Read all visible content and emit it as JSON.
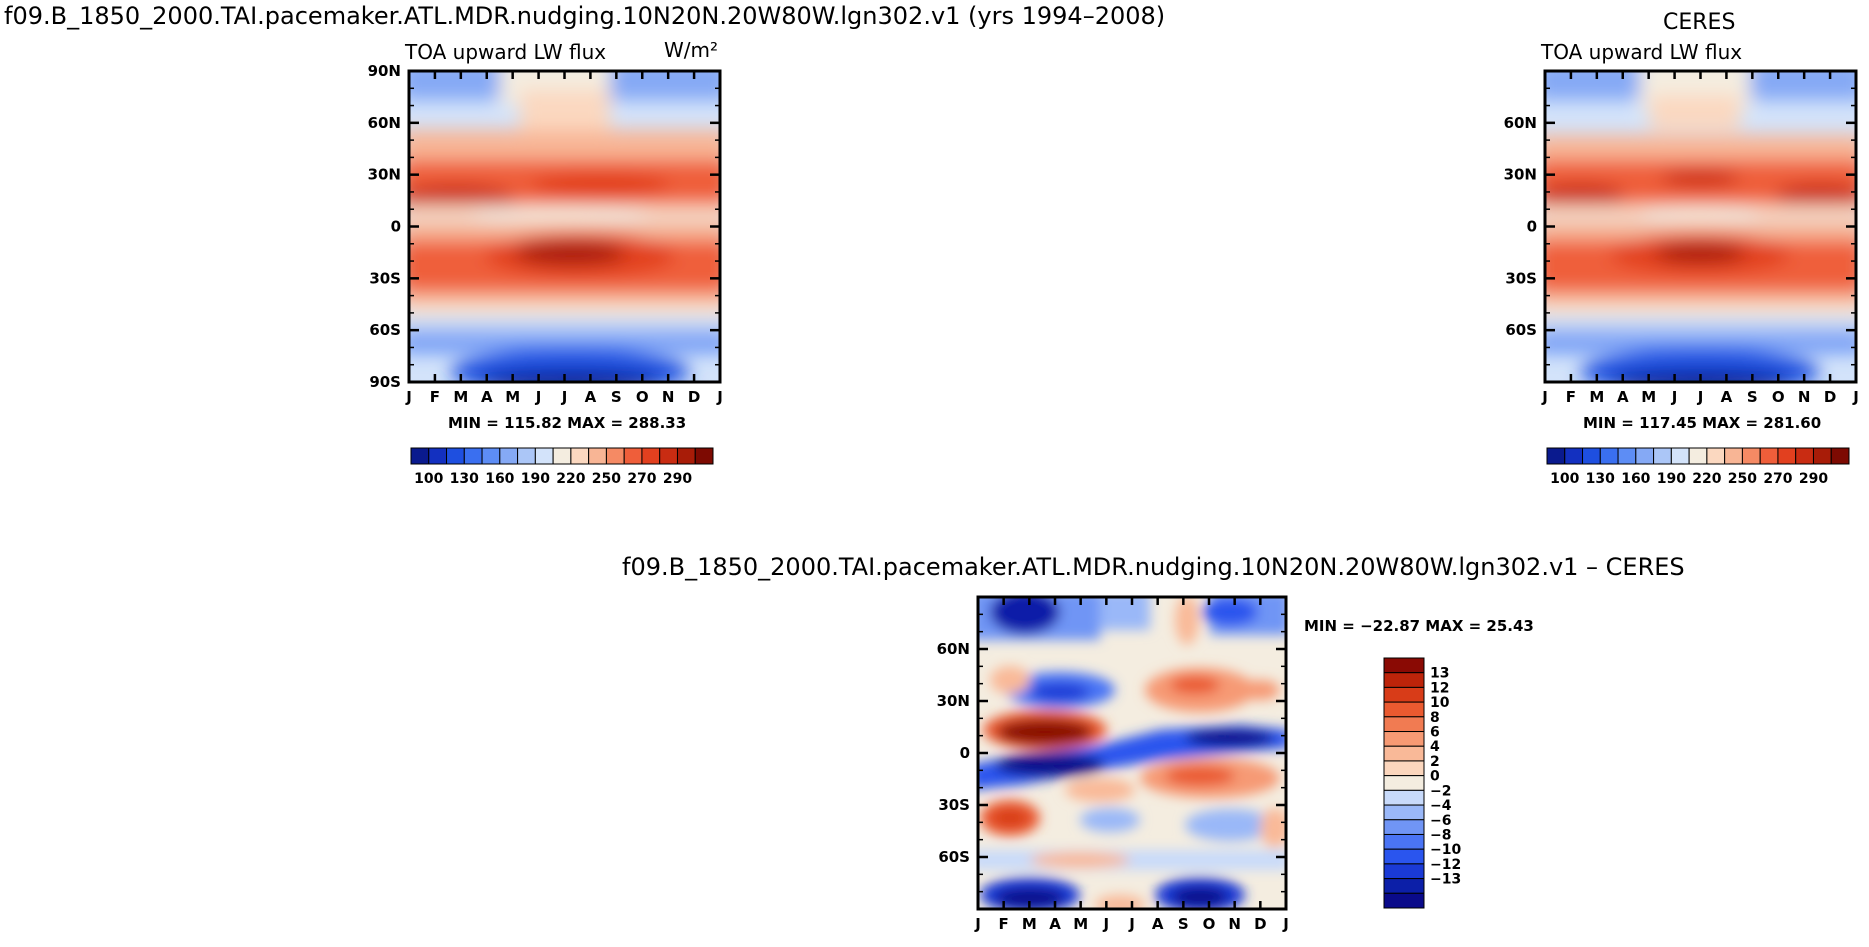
{
  "colors": {
    "model_scale": [
      "#0a1a8e",
      "#1330c0",
      "#1e4fe0",
      "#3a6ff0",
      "#5d8df5",
      "#85a9f5",
      "#abc6f7",
      "#d3e3fa",
      "#f4ede0",
      "#fbd8c0",
      "#f8b595",
      "#f58a64",
      "#ef5e3a",
      "#e2401f",
      "#c92c12",
      "#a81c08",
      "#7d0a02"
    ],
    "diff_scale": [
      "#0a0a8a",
      "#0c1fa8",
      "#1a3ad6",
      "#2a55ee",
      "#4a74f5",
      "#7095f5",
      "#9ab8f8",
      "#c8dafa",
      "#f4ede0",
      "#fbd6bd",
      "#f9b998",
      "#f69a74",
      "#f17b52",
      "#ea5a30",
      "#d83c18",
      "#bd240a",
      "#8a0a04"
    ]
  },
  "chart_data": [
    {
      "id": "model",
      "type": "heatmap",
      "main_title": "f09.B_1850_2000.TAI.pacemaker.ATL.MDR.nudging.10N20N.20W80W.lgn302.v1 (yrs 1994–2008)",
      "left_string": "TOA upward LW flux",
      "right_string": "W/m²",
      "stats": "MIN = 115.82 MAX = 288.33",
      "x_ticks": [
        "J",
        "F",
        "M",
        "A",
        "M",
        "J",
        "J",
        "A",
        "S",
        "O",
        "N",
        "D",
        "J"
      ],
      "y_ticks": [
        "90N",
        "60N",
        "30N",
        "0",
        "30S",
        "60S",
        "90S"
      ],
      "colorbar_labels": [
        "100",
        "130",
        "160",
        "190",
        "220",
        "250",
        "270",
        "290"
      ],
      "colorbar_orientation": "horizontal",
      "min": 115.82,
      "max": 288.33
    },
    {
      "id": "obs",
      "type": "heatmap",
      "center_string": "CERES",
      "left_string": "TOA upward LW flux",
      "stats": "MIN = 117.45 MAX = 281.60",
      "x_ticks": [
        "J",
        "F",
        "M",
        "A",
        "M",
        "J",
        "J",
        "A",
        "S",
        "O",
        "N",
        "D",
        "J"
      ],
      "y_ticks": [
        "60N",
        "30N",
        "0",
        "30S",
        "60S"
      ],
      "colorbar_labels": [
        "100",
        "130",
        "160",
        "190",
        "220",
        "250",
        "270",
        "290"
      ],
      "colorbar_orientation": "horizontal",
      "min": 117.45,
      "max": 281.6
    },
    {
      "id": "diff",
      "type": "heatmap",
      "title": "f09.B_1850_2000.TAI.pacemaker.ATL.MDR.nudging.10N20N.20W80W.lgn302.v1 – CERES",
      "stats": "MIN = −22.87 MAX =  25.43",
      "x_ticks": [
        "J",
        "F",
        "M",
        "A",
        "M",
        "J",
        "J",
        "A",
        "S",
        "O",
        "N",
        "D",
        "J"
      ],
      "y_ticks": [
        "60N",
        "30N",
        "0",
        "30S",
        "60S"
      ],
      "colorbar_labels": [
        "13",
        "12",
        "10",
        "8",
        "6",
        "4",
        "2",
        "0",
        "−2",
        "−4",
        "−6",
        "−8",
        "−10",
        "−12",
        "−13"
      ],
      "colorbar_orientation": "vertical",
      "min": -22.87,
      "max": 25.43
    }
  ]
}
